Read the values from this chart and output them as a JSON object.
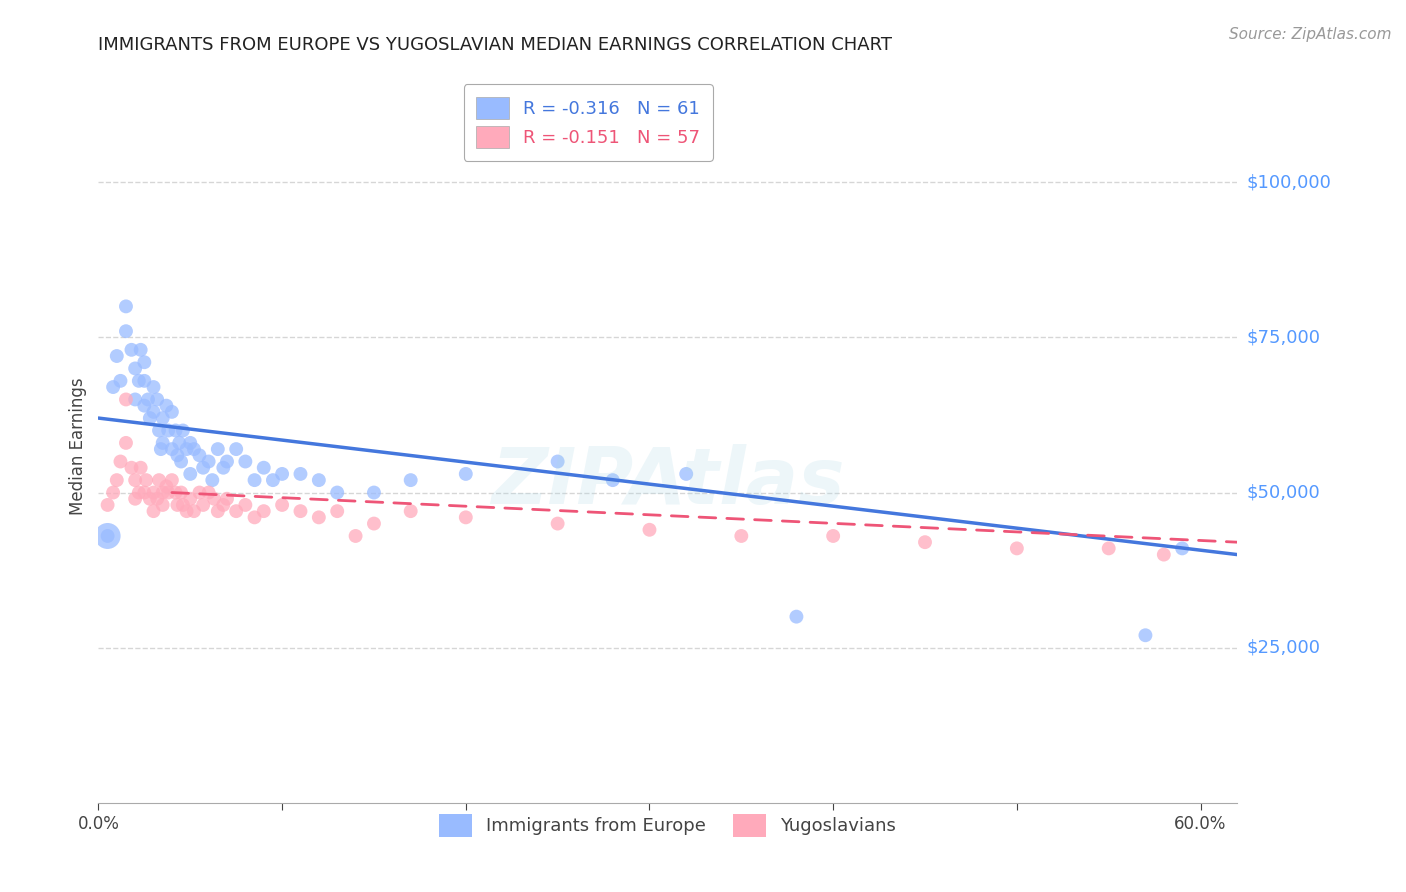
{
  "title": "IMMIGRANTS FROM EUROPE VS YUGOSLAVIAN MEDIAN EARNINGS CORRELATION CHART",
  "source": "Source: ZipAtlas.com",
  "ylabel": "Median Earnings",
  "yticks": [
    0,
    25000,
    50000,
    75000,
    100000
  ],
  "ytick_labels": [
    "",
    "$25,000",
    "$50,000",
    "$75,000",
    "$100,000"
  ],
  "xlim": [
    0.0,
    0.62
  ],
  "ylim": [
    0,
    115000
  ],
  "watermark": "ZIPAtlas",
  "legend1_label": "R = -0.316   N = 61",
  "legend2_label": "R = -0.151   N = 57",
  "legend_label1": "Immigrants from Europe",
  "legend_label2": "Yugoslavians",
  "blue_color": "#99bbff",
  "pink_color": "#ffaabb",
  "blue_line_color": "#4477dd",
  "pink_line_color": "#ee5577",
  "title_color": "#222222",
  "axis_label_color": "#444444",
  "ytick_color": "#5599ff",
  "xtick_color": "#444444",
  "grid_color": "#cccccc",
  "blue_scatter_x": [
    0.005,
    0.008,
    0.01,
    0.012,
    0.015,
    0.015,
    0.018,
    0.02,
    0.02,
    0.022,
    0.023,
    0.025,
    0.025,
    0.025,
    0.027,
    0.028,
    0.03,
    0.03,
    0.032,
    0.033,
    0.034,
    0.035,
    0.035,
    0.037,
    0.038,
    0.04,
    0.04,
    0.042,
    0.043,
    0.044,
    0.045,
    0.046,
    0.048,
    0.05,
    0.05,
    0.052,
    0.055,
    0.057,
    0.06,
    0.062,
    0.065,
    0.068,
    0.07,
    0.075,
    0.08,
    0.085,
    0.09,
    0.095,
    0.1,
    0.11,
    0.12,
    0.13,
    0.15,
    0.17,
    0.2,
    0.25,
    0.28,
    0.32,
    0.38,
    0.57,
    0.59
  ],
  "blue_scatter_y": [
    43000,
    67000,
    72000,
    68000,
    80000,
    76000,
    73000,
    70000,
    65000,
    68000,
    73000,
    71000,
    68000,
    64000,
    65000,
    62000,
    67000,
    63000,
    65000,
    60000,
    57000,
    62000,
    58000,
    64000,
    60000,
    63000,
    57000,
    60000,
    56000,
    58000,
    55000,
    60000,
    57000,
    58000,
    53000,
    57000,
    56000,
    54000,
    55000,
    52000,
    57000,
    54000,
    55000,
    57000,
    55000,
    52000,
    54000,
    52000,
    53000,
    53000,
    52000,
    50000,
    50000,
    52000,
    53000,
    55000,
    52000,
    53000,
    30000,
    27000,
    41000
  ],
  "pink_scatter_x": [
    0.005,
    0.008,
    0.01,
    0.012,
    0.015,
    0.015,
    0.018,
    0.02,
    0.02,
    0.022,
    0.023,
    0.025,
    0.026,
    0.028,
    0.03,
    0.03,
    0.032,
    0.033,
    0.035,
    0.035,
    0.037,
    0.038,
    0.04,
    0.042,
    0.043,
    0.045,
    0.046,
    0.048,
    0.05,
    0.052,
    0.055,
    0.057,
    0.06,
    0.063,
    0.065,
    0.068,
    0.07,
    0.075,
    0.08,
    0.085,
    0.09,
    0.1,
    0.11,
    0.12,
    0.13,
    0.14,
    0.15,
    0.17,
    0.2,
    0.25,
    0.3,
    0.35,
    0.4,
    0.45,
    0.5,
    0.55,
    0.58
  ],
  "pink_scatter_y": [
    48000,
    50000,
    52000,
    55000,
    65000,
    58000,
    54000,
    52000,
    49000,
    50000,
    54000,
    50000,
    52000,
    49000,
    50000,
    47000,
    49000,
    52000,
    50000,
    48000,
    51000,
    50000,
    52000,
    50000,
    48000,
    50000,
    48000,
    47000,
    49000,
    47000,
    50000,
    48000,
    50000,
    49000,
    47000,
    48000,
    49000,
    47000,
    48000,
    46000,
    47000,
    48000,
    47000,
    46000,
    47000,
    43000,
    45000,
    47000,
    46000,
    45000,
    44000,
    43000,
    43000,
    42000,
    41000,
    41000,
    40000
  ],
  "blue_trendline_x": [
    0.0,
    0.62
  ],
  "blue_trendline_y": [
    62000,
    40000
  ],
  "pink_trendline_x": [
    0.04,
    0.62
  ],
  "pink_trendline_y": [
    50000,
    42000
  ],
  "marker_size": 100,
  "large_marker_size": 350
}
